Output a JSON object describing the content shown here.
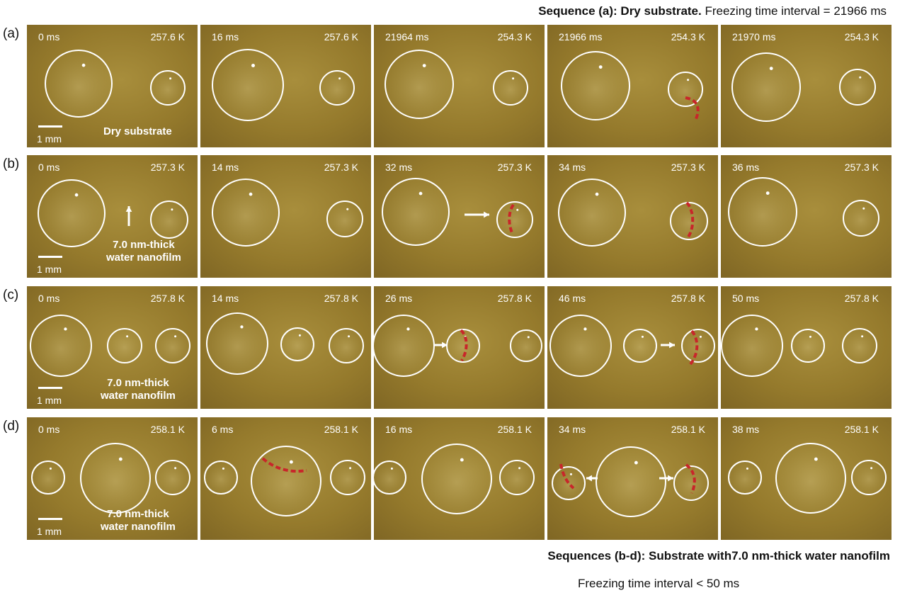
{
  "header": {
    "sequence_a_label": "Sequence (a): Dry substrate.",
    "sequence_a_rest": " Freezing time interval = 21966 ms"
  },
  "scale_label": "1 mm",
  "rows": [
    {
      "label": "(a)",
      "annotation": [
        "Dry substrate"
      ],
      "panels": [
        {
          "time": "0 ms",
          "temp": "257.6 K"
        },
        {
          "time": "16 ms",
          "temp": "257.6 K"
        },
        {
          "time": "21964 ms",
          "temp": "254.3 K"
        },
        {
          "time": "21966 ms",
          "temp": "254.3 K"
        },
        {
          "time": "21970 ms",
          "temp": "254.3 K"
        }
      ]
    },
    {
      "label": "(b)",
      "annotation": [
        "7.0 nm-thick",
        "water nanofilm"
      ],
      "panels": [
        {
          "time": "0 ms",
          "temp": "257.3 K"
        },
        {
          "time": "14 ms",
          "temp": "257.3 K"
        },
        {
          "time": "32 ms",
          "temp": "257.3 K"
        },
        {
          "time": "34 ms",
          "temp": "257.3 K"
        },
        {
          "time": "36 ms",
          "temp": "257.3 K"
        }
      ]
    },
    {
      "label": "(c)",
      "annotation": [
        "7.0 nm-thick",
        "water nanofilm"
      ],
      "panels": [
        {
          "time": "0 ms",
          "temp": "257.8 K"
        },
        {
          "time": "14 ms",
          "temp": "257.8 K"
        },
        {
          "time": "26 ms",
          "temp": "257.8 K"
        },
        {
          "time": "46 ms",
          "temp": "257.8 K"
        },
        {
          "time": "50 ms",
          "temp": "257.8 K"
        }
      ]
    },
    {
      "label": "(d)",
      "annotation": [
        "7.0 nm-thick",
        "water nanofilm"
      ],
      "panels": [
        {
          "time": "0 ms",
          "temp": "258.1 K"
        },
        {
          "time": "6 ms",
          "temp": "258.1 K"
        },
        {
          "time": "16 ms",
          "temp": "258.1 K"
        },
        {
          "time": "34 ms",
          "temp": "258.1 K"
        },
        {
          "time": "38 ms",
          "temp": "258.1 K"
        }
      ]
    }
  ],
  "footer": {
    "sequences_bd": "Sequences (b-d): Substrate with7.0 nm-thick water nanofilm",
    "interval": "Freezing time interval < 50 ms"
  },
  "colors": {
    "droplet_outline": "#ffffff",
    "freezing_front": "#c8262a",
    "substrate": "#9a7f30"
  }
}
